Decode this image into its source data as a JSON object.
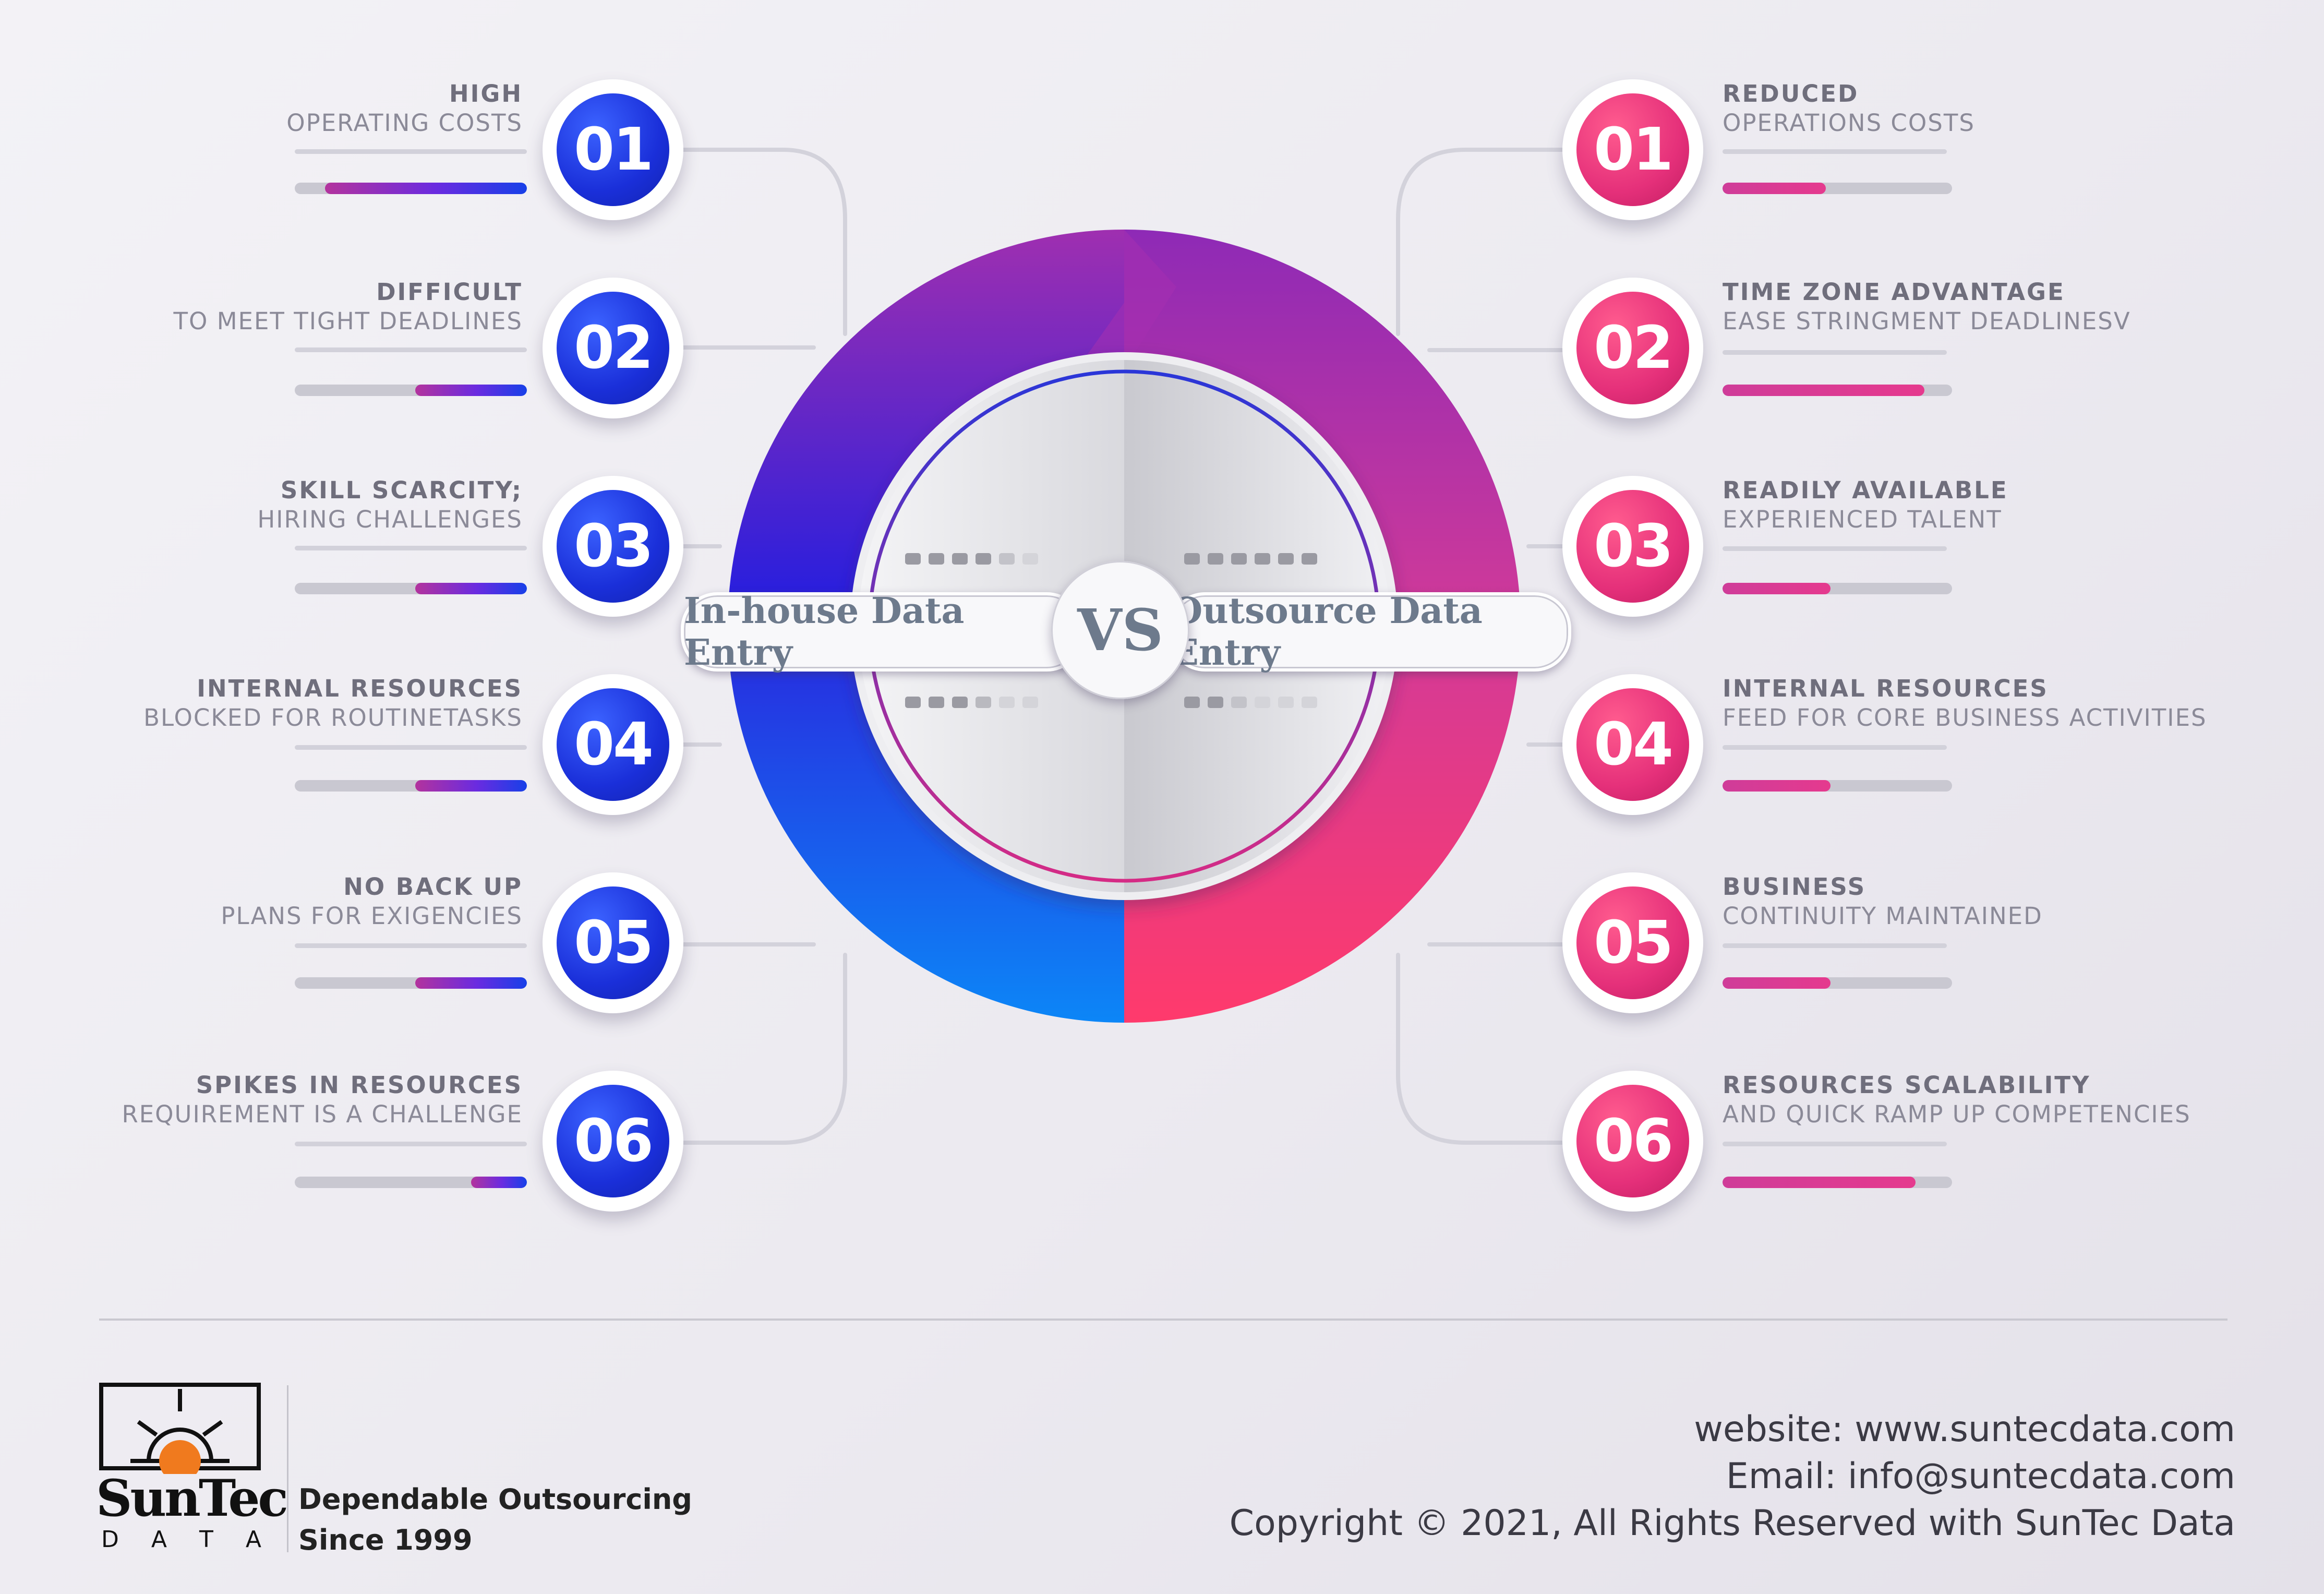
{
  "center": {
    "left_label": "In-house Data Entry",
    "vs_label": "VS",
    "right_label": "Outsource Data Entry"
  },
  "left_items": [
    {
      "number": "01",
      "title": "HIGH",
      "subtitle": "OPERATING COSTS",
      "bar_level": 0.87
    },
    {
      "number": "02",
      "title": "DIFFICULT",
      "subtitle": "TO MEET TIGHT DEADLINES",
      "bar_level": 0.48
    },
    {
      "number": "03",
      "title": "SKILL SCARCITY;",
      "subtitle": "HIRING CHALLENGES",
      "bar_level": 0.48
    },
    {
      "number": "04",
      "title": "INTERNAL RESOURCES",
      "subtitle": "BLOCKED FOR ROUTINETASKS",
      "bar_level": 0.48
    },
    {
      "number": "05",
      "title": "NO BACK UP",
      "subtitle": "PLANS FOR EXIGENCIES",
      "bar_level": 0.48
    },
    {
      "number": "06",
      "title": "SPIKES IN RESOURCES",
      "subtitle": "REQUIREMENT IS A CHALLENGE",
      "bar_level": 0.24
    }
  ],
  "right_items": [
    {
      "number": "01",
      "title": "REDUCED",
      "subtitle": "OPERATIONS COSTS",
      "bar_level": 0.45
    },
    {
      "number": "02",
      "title": "TIME ZONE ADVANTAGE",
      "subtitle": "EASE STRINGMENT DEADLINESV",
      "bar_level": 0.88
    },
    {
      "number": "03",
      "title": "READILY AVAILABLE",
      "subtitle": "EXPERIENCED TALENT",
      "bar_level": 0.47
    },
    {
      "number": "04",
      "title": "INTERNAL RESOURCES",
      "subtitle": "FEED FOR CORE BUSINESS ACTIVITIES",
      "bar_level": 0.47
    },
    {
      "number": "05",
      "title": "BUSINESS",
      "subtitle": "CONTINUITY MAINTAINED",
      "bar_level": 0.47
    },
    {
      "number": "06",
      "title": "RESOURCES SCALABILITY",
      "subtitle": "AND QUICK RAMP UP COMPETENCIES",
      "bar_level": 0.84
    }
  ],
  "footer": {
    "logo_text": "SunTec",
    "logo_subtext": "D A T A",
    "tagline_line1": "Dependable Outsourcing",
    "tagline_line2": "Since 1999",
    "website": "website: www.suntecdata.com",
    "email": "Email: info@suntecdata.com",
    "copyright": "Copyright © 2021, All Rights Reserved with SunTec Data"
  },
  "colors": {
    "inhouse_accent": "#1a2fd9",
    "outsource_accent": "#e5307a",
    "logo_orange": "#f07a1e"
  }
}
